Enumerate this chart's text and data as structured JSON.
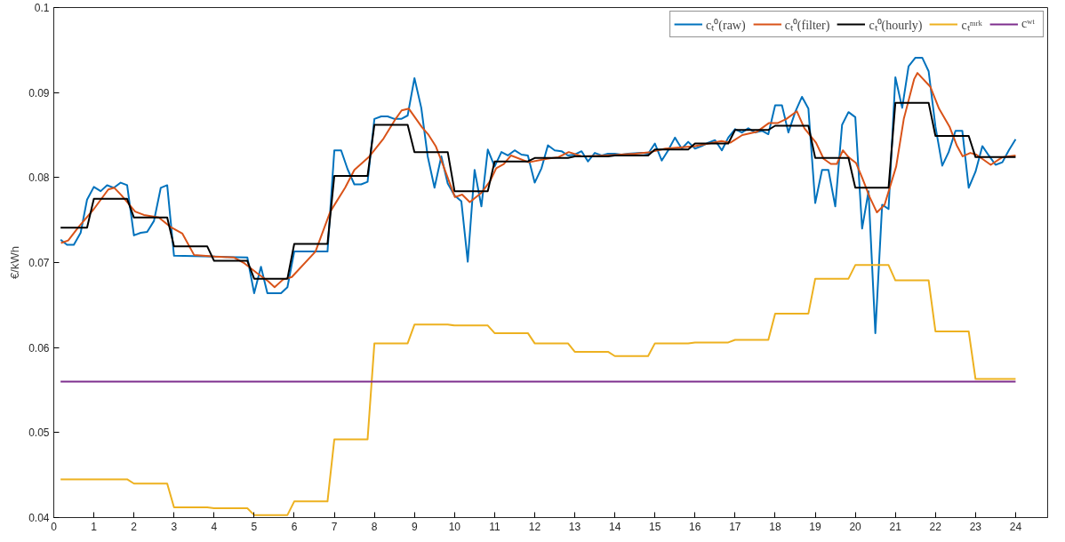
{
  "chart_data": {
    "type": "line",
    "ylabel": "€/kWh",
    "xlim": [
      0,
      24.8
    ],
    "ylim": [
      0.04,
      0.1
    ],
    "xticks": [
      0,
      1,
      2,
      3,
      4,
      5,
      6,
      7,
      8,
      9,
      10,
      11,
      12,
      13,
      14,
      15,
      16,
      17,
      18,
      19,
      20,
      21,
      22,
      23,
      24
    ],
    "yticks": [
      0.04,
      0.05,
      0.06,
      0.07,
      0.08,
      0.09,
      0.1
    ],
    "grid": false,
    "legend": "top right",
    "marker": "none",
    "line_style": "solid",
    "series": [
      {
        "name": "cₜ⁰(raw)",
        "color": "#0072bd",
        "x": [
          0.17,
          0.33,
          0.5,
          0.67,
          0.83,
          1,
          1.17,
          1.33,
          1.5,
          1.67,
          1.83,
          2,
          2.17,
          2.33,
          2.5,
          2.67,
          2.83,
          3,
          4,
          4.83,
          5,
          5.17,
          5.33,
          5.5,
          5.67,
          5.83,
          6,
          6.83,
          7,
          7.17,
          7.33,
          7.5,
          7.67,
          7.83,
          8,
          8.17,
          8.33,
          8.5,
          8.67,
          8.83,
          9,
          9.17,
          9.33,
          9.5,
          9.67,
          9.83,
          10,
          10.17,
          10.33,
          10.5,
          10.67,
          10.83,
          11,
          11.17,
          11.33,
          11.5,
          11.67,
          11.83,
          12,
          12.17,
          12.33,
          12.5,
          12.67,
          12.83,
          13,
          13.17,
          13.33,
          13.5,
          13.67,
          13.83,
          14,
          14.17,
          14.33,
          14.67,
          14.83,
          15,
          15.17,
          15.33,
          15.5,
          15.67,
          15.83,
          16,
          16.17,
          16.33,
          16.5,
          16.67,
          16.83,
          17,
          17.17,
          17.33,
          17.5,
          17.67,
          17.83,
          18,
          18.17,
          18.33,
          18.5,
          18.67,
          18.83,
          19,
          19.17,
          19.33,
          19.5,
          19.67,
          19.83,
          20,
          20.17,
          20.33,
          20.5,
          20.67,
          20.83,
          21,
          21.17,
          21.33,
          21.5,
          21.67,
          21.83,
          22,
          22.17,
          22.33,
          22.5,
          22.67,
          22.83,
          23,
          23.17,
          23.33,
          23.5,
          23.67,
          23.83,
          24
        ],
        "values": [
          0.0727,
          0.0721,
          0.0721,
          0.0735,
          0.0774,
          0.0789,
          0.0784,
          0.0791,
          0.0788,
          0.0794,
          0.0791,
          0.0732,
          0.0735,
          0.0736,
          0.0749,
          0.0788,
          0.0791,
          0.0708,
          0.0707,
          0.0706,
          0.0664,
          0.0695,
          0.0664,
          0.0664,
          0.0664,
          0.0671,
          0.0713,
          0.0713,
          0.0832,
          0.0832,
          0.081,
          0.0792,
          0.0792,
          0.0795,
          0.0869,
          0.0872,
          0.0872,
          0.0869,
          0.0869,
          0.0873,
          0.0917,
          0.0882,
          0.0825,
          0.0788,
          0.0825,
          0.0793,
          0.0779,
          0.0772,
          0.0701,
          0.0809,
          0.0766,
          0.0833,
          0.0813,
          0.083,
          0.0826,
          0.0832,
          0.0827,
          0.0826,
          0.0794,
          0.0811,
          0.0838,
          0.0832,
          0.0831,
          0.0826,
          0.0827,
          0.0831,
          0.0819,
          0.0829,
          0.0826,
          0.0828,
          0.0828,
          0.0827,
          0.0828,
          0.0829,
          0.0828,
          0.084,
          0.082,
          0.0832,
          0.0847,
          0.0834,
          0.0842,
          0.0834,
          0.0837,
          0.0841,
          0.0844,
          0.0832,
          0.0847,
          0.0857,
          0.0853,
          0.0858,
          0.0853,
          0.0855,
          0.0851,
          0.0885,
          0.0885,
          0.0853,
          0.0877,
          0.0895,
          0.0881,
          0.077,
          0.0809,
          0.0809,
          0.0766,
          0.0862,
          0.0877,
          0.0871,
          0.074,
          0.0784,
          0.0617,
          0.0768,
          0.0763,
          0.0918,
          0.0882,
          0.0931,
          0.0941,
          0.0941,
          0.0925,
          0.086,
          0.0814,
          0.083,
          0.0855,
          0.0855,
          0.0788,
          0.0807,
          0.0837,
          0.0826,
          0.0815,
          0.0818,
          0.0832,
          0.0845
        ]
      },
      {
        "name": "cₜ⁰(filter)",
        "color": "#d95319",
        "x": [
          0.18,
          0.36,
          0.62,
          1,
          1.36,
          1.51,
          1.69,
          2.03,
          2.25,
          2.62,
          2.91,
          3.21,
          3.5,
          4.02,
          4.5,
          4.76,
          5.06,
          5.35,
          5.51,
          5.72,
          5.94,
          6.53,
          6.9,
          7.27,
          7.5,
          7.86,
          8.23,
          8.53,
          8.68,
          8.86,
          9.19,
          9.34,
          9.53,
          9.71,
          10.01,
          10.19,
          10.38,
          10.67,
          10.89,
          11.04,
          11.23,
          11.41,
          11.85,
          12.3,
          12.59,
          12.85,
          13.18,
          13.77,
          14.51,
          14.89,
          15.26,
          16,
          16.66,
          16.88,
          17.18,
          17.55,
          17.84,
          18.06,
          18.28,
          18.54,
          18.73,
          19.02,
          19.21,
          19.39,
          19.54,
          19.69,
          19.83,
          20.02,
          20.17,
          20.36,
          20.54,
          20.73,
          21.02,
          21.21,
          21.47,
          21.55,
          21.87,
          22.09,
          22.35,
          22.53,
          22.68,
          22.87,
          23.02,
          23.38,
          23.67,
          24
        ],
        "values": [
          0.0723,
          0.0726,
          0.0742,
          0.0763,
          0.0786,
          0.0788,
          0.0779,
          0.076,
          0.0756,
          0.0753,
          0.0742,
          0.0734,
          0.0709,
          0.0707,
          0.0706,
          0.0699,
          0.0688,
          0.0678,
          0.0671,
          0.068,
          0.0683,
          0.0713,
          0.076,
          0.0788,
          0.0809,
          0.0824,
          0.0846,
          0.0869,
          0.0879,
          0.0881,
          0.0859,
          0.0851,
          0.0837,
          0.0815,
          0.0777,
          0.078,
          0.0771,
          0.0782,
          0.0796,
          0.0811,
          0.0816,
          0.0826,
          0.0818,
          0.0822,
          0.0824,
          0.083,
          0.0825,
          0.0826,
          0.0828,
          0.083,
          0.0834,
          0.0837,
          0.0843,
          0.0841,
          0.085,
          0.0854,
          0.0864,
          0.0864,
          0.0869,
          0.0878,
          0.0858,
          0.0841,
          0.0822,
          0.0816,
          0.0816,
          0.0832,
          0.0824,
          0.0817,
          0.08,
          0.0777,
          0.0759,
          0.0768,
          0.0813,
          0.0869,
          0.0916,
          0.0923,
          0.0907,
          0.0881,
          0.086,
          0.0838,
          0.0825,
          0.0829,
          0.0827,
          0.0815,
          0.0824,
          0.0826
        ]
      },
      {
        "name": "cₜ⁰(hourly)",
        "color": "#000000",
        "x": [
          0.17,
          0.83,
          1,
          1.83,
          2,
          2.83,
          3,
          3.83,
          4,
          4.83,
          5,
          5.83,
          6,
          6.83,
          7,
          7.83,
          8,
          8.83,
          9,
          9.83,
          10,
          10.83,
          11,
          11.83,
          12,
          12.83,
          13,
          13.83,
          14,
          14.83,
          15,
          15.83,
          16,
          16.83,
          17,
          17.83,
          18,
          18.83,
          19,
          19.83,
          20,
          20.83,
          21,
          21.83,
          22,
          22.83,
          23,
          24
        ],
        "values": [
          0.0741,
          0.0741,
          0.0775,
          0.0775,
          0.0753,
          0.0753,
          0.0719,
          0.0719,
          0.0702,
          0.0702,
          0.0681,
          0.0681,
          0.0722,
          0.0722,
          0.0802,
          0.0802,
          0.0862,
          0.0862,
          0.083,
          0.083,
          0.0784,
          0.0784,
          0.0819,
          0.0819,
          0.0823,
          0.0823,
          0.0825,
          0.0825,
          0.0826,
          0.0826,
          0.0833,
          0.0833,
          0.084,
          0.084,
          0.0856,
          0.0856,
          0.0861,
          0.0861,
          0.0823,
          0.0823,
          0.0788,
          0.0788,
          0.0888,
          0.0888,
          0.0849,
          0.0849,
          0.0824,
          0.0824
        ]
      },
      {
        "name": "cₜᵐʳᵏ",
        "color": "#edb120",
        "x": [
          0.17,
          0.83,
          1,
          1.83,
          2,
          2.83,
          3,
          3.83,
          4,
          4.83,
          5,
          5.83,
          6,
          6.83,
          7,
          7.83,
          8,
          8.83,
          9,
          9.83,
          10,
          10.83,
          11,
          11.83,
          12,
          12.83,
          13,
          13.83,
          14,
          14.83,
          15,
          15.83,
          16,
          16.83,
          17,
          17.83,
          18,
          18.83,
          19,
          19.83,
          20,
          20.83,
          21,
          21.83,
          22,
          22.83,
          23,
          24
        ],
        "values": [
          0.0445,
          0.0445,
          0.0445,
          0.0445,
          0.044,
          0.044,
          0.0412,
          0.0412,
          0.0411,
          0.0411,
          0.0403,
          0.0403,
          0.0419,
          0.0419,
          0.0492,
          0.0492,
          0.0605,
          0.0605,
          0.0627,
          0.0627,
          0.0626,
          0.0626,
          0.0617,
          0.0617,
          0.0605,
          0.0605,
          0.0595,
          0.0595,
          0.059,
          0.059,
          0.0605,
          0.0605,
          0.0606,
          0.0606,
          0.0609,
          0.0609,
          0.064,
          0.064,
          0.0681,
          0.0681,
          0.0697,
          0.0697,
          0.0679,
          0.0679,
          0.0619,
          0.0619,
          0.0563,
          0.0563
        ]
      },
      {
        "name": "cʷᵗ",
        "color": "#7e2f8e",
        "x": [
          0.17,
          24
        ],
        "values": [
          0.056,
          0.056
        ]
      }
    ]
  }
}
